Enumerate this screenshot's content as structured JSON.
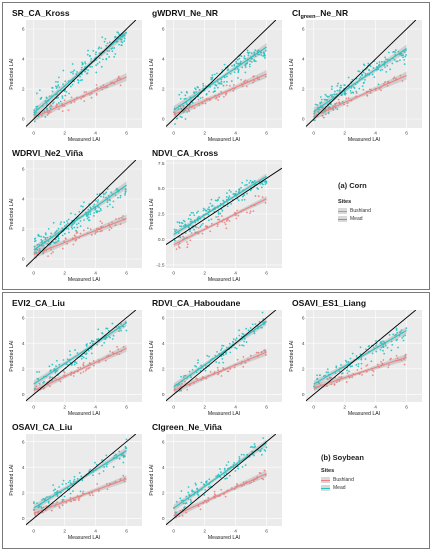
{
  "colors": {
    "bushland": "#f08080",
    "mead": "#20c4c4",
    "identity": "#000000",
    "plot_bg": "#ebebeb",
    "grid": "#ffffff"
  },
  "chart_data": [
    {
      "id": "SR_CA_Kross",
      "group": "corn",
      "title": "SR_CA_Kross",
      "title_sub": "",
      "title_tail": "",
      "type": "scatter",
      "xlabel": "Measured LAI",
      "ylabel": "Predicted LAI",
      "xlim": [
        -0.5,
        7
      ],
      "ylim": [
        -0.6,
        6.6
      ],
      "xticks": [
        0,
        2,
        4,
        6
      ],
      "yticks": [
        0,
        2,
        4,
        6
      ],
      "xtick_labels": [
        "0",
        "2",
        "4",
        "6"
      ],
      "ytick_labels": [
        "0",
        "2",
        "4",
        "6"
      ],
      "series": [
        {
          "name": "Bushland",
          "intercept": 0.1,
          "slope": 0.45,
          "xmin": 0,
          "xmax": 6,
          "noise": 0.35,
          "n": 60
        },
        {
          "name": "Mead",
          "intercept": 0.4,
          "slope": 0.9,
          "xmin": 0,
          "xmax": 6,
          "noise": 0.9,
          "n": 190,
          "cap": 5.8
        }
      ]
    },
    {
      "id": "gWDRVI_Ne_NR",
      "group": "corn",
      "title": "gWDRVI_Ne_NR",
      "title_sub": "",
      "title_tail": "",
      "type": "scatter",
      "xlabel": "Measured LAI",
      "ylabel": "Predicted LAI",
      "xlim": [
        -0.5,
        7
      ],
      "ylim": [
        -0.6,
        6.6
      ],
      "xticks": [
        0,
        2,
        4,
        6
      ],
      "yticks": [
        0,
        2,
        4,
        6
      ],
      "xtick_labels": [
        "0",
        "2",
        "4",
        "6"
      ],
      "ytick_labels": [
        "0",
        "2",
        "4",
        "6"
      ],
      "series": [
        {
          "name": "Bushland",
          "intercept": 0.3,
          "slope": 0.45,
          "xmin": 0,
          "xmax": 6,
          "noise": 0.35,
          "n": 60
        },
        {
          "name": "Mead",
          "intercept": 0.6,
          "slope": 0.7,
          "xmin": 0,
          "xmax": 6,
          "noise": 0.8,
          "n": 190,
          "cap": 4.6
        }
      ]
    },
    {
      "id": "CI_green_Ne_NR",
      "group": "corn",
      "title": "CI",
      "title_sub": "green",
      "title_tail": "_Ne_NR",
      "type": "scatter",
      "xlabel": "Measured LAI",
      "ylabel": "Predicted LAI",
      "xlim": [
        -0.5,
        7
      ],
      "ylim": [
        -0.6,
        6.6
      ],
      "xticks": [
        0,
        2,
        4,
        6
      ],
      "yticks": [
        0,
        2,
        4,
        6
      ],
      "xtick_labels": [
        "0",
        "2",
        "4",
        "6"
      ],
      "ytick_labels": [
        "0",
        "2",
        "4",
        "6"
      ],
      "series": [
        {
          "name": "Bushland",
          "intercept": 0.2,
          "slope": 0.45,
          "xmin": 0,
          "xmax": 6,
          "noise": 0.35,
          "n": 60
        },
        {
          "name": "Mead",
          "intercept": 0.5,
          "slope": 0.7,
          "xmin": 0,
          "xmax": 6,
          "noise": 0.8,
          "n": 190,
          "cap": 4.6
        }
      ]
    },
    {
      "id": "WDRVI_Ne2_Vina",
      "group": "corn",
      "title": "WDRVI_Ne2_Viña",
      "title_sub": "",
      "title_tail": "",
      "type": "scatter",
      "xlabel": "Measured LAI",
      "ylabel": "Predicted LAI",
      "xlim": [
        -0.5,
        7
      ],
      "ylim": [
        -0.6,
        6.6
      ],
      "xticks": [
        0,
        2,
        4,
        6
      ],
      "yticks": [
        0,
        2,
        4,
        6
      ],
      "xtick_labels": [
        "0",
        "2",
        "4",
        "6"
      ],
      "ytick_labels": [
        "0",
        "2",
        "4",
        "6"
      ],
      "series": [
        {
          "name": "Bushland",
          "intercept": 0.3,
          "slope": 0.4,
          "xmin": 0,
          "xmax": 6,
          "noise": 0.35,
          "n": 60
        },
        {
          "name": "Mead",
          "intercept": 0.6,
          "slope": 0.72,
          "xmin": 0,
          "xmax": 6,
          "noise": 0.8,
          "n": 190,
          "cap": 4.7
        }
      ]
    },
    {
      "id": "NDVI_CA_Kross",
      "group": "corn",
      "title": "NDVI_CA_Kross",
      "title_sub": "",
      "title_tail": "",
      "type": "scatter",
      "xlabel": "Measured LAI",
      "ylabel": "Predicted LAI",
      "xlim": [
        -0.5,
        7
      ],
      "ylim": [
        -2.8,
        7.8
      ],
      "xticks": [
        0,
        2,
        4,
        6
      ],
      "yticks": [
        -2.5,
        0,
        2.5,
        5,
        7.5
      ],
      "xtick_labels": [
        "0",
        "2",
        "4",
        "6"
      ],
      "ytick_labels": [
        "-2.5",
        "0.0",
        "2.5",
        "5.0",
        "7.5"
      ],
      "series": [
        {
          "name": "Bushland",
          "intercept": -0.5,
          "slope": 0.75,
          "xmin": 0,
          "xmax": 6,
          "noise": 0.7,
          "n": 60
        },
        {
          "name": "Mead",
          "intercept": 0.5,
          "slope": 0.95,
          "xmin": 0,
          "xmax": 6,
          "noise": 1.1,
          "n": 190,
          "cap": 5.8
        }
      ]
    },
    {
      "id": "EVI2_CA_Liu",
      "group": "soybean",
      "title": "EVI2_CA_Liu",
      "title_sub": "",
      "title_tail": "",
      "type": "scatter",
      "xlabel": "Measured LAI",
      "ylabel": "Predicted LAI",
      "xlim": [
        -0.5,
        7
      ],
      "ylim": [
        -0.6,
        6.6
      ],
      "xticks": [
        0,
        2,
        4,
        6
      ],
      "yticks": [
        0,
        2,
        4,
        6
      ],
      "xtick_labels": [
        "0",
        "2",
        "4",
        "6"
      ],
      "ytick_labels": [
        "0",
        "2",
        "4",
        "6"
      ],
      "series": [
        {
          "name": "Bushland",
          "intercept": 0.3,
          "slope": 0.55,
          "xmin": 0,
          "xmax": 6,
          "noise": 0.4,
          "n": 60
        },
        {
          "name": "Mead",
          "intercept": 0.8,
          "slope": 0.8,
          "xmin": 0,
          "xmax": 6,
          "noise": 0.7,
          "n": 110
        }
      ]
    },
    {
      "id": "RDVI_CA_Haboudane",
      "group": "soybean",
      "title": "RDVI_CA_Haboudane",
      "title_sub": "",
      "title_tail": "",
      "type": "scatter",
      "xlabel": "Measured LAI",
      "ylabel": "Predicted LAI",
      "xlim": [
        -0.5,
        7
      ],
      "ylim": [
        -0.6,
        6.6
      ],
      "xticks": [
        0,
        2,
        4,
        6
      ],
      "yticks": [
        0,
        2,
        4,
        6
      ],
      "xtick_labels": [
        "0",
        "2",
        "4",
        "6"
      ],
      "ytick_labels": [
        "0",
        "2",
        "4",
        "6"
      ],
      "series": [
        {
          "name": "Bushland",
          "intercept": 0.3,
          "slope": 0.5,
          "xmin": 0,
          "xmax": 6,
          "noise": 0.4,
          "n": 60
        },
        {
          "name": "Mead",
          "intercept": 0.6,
          "slope": 0.85,
          "xmin": 0,
          "xmax": 6,
          "noise": 0.7,
          "n": 110
        }
      ]
    },
    {
      "id": "OSAVI_ES1_Liang",
      "group": "soybean",
      "title": "OSAVI_ES1_Liang",
      "title_sub": "",
      "title_tail": "",
      "type": "scatter",
      "xlabel": "Measured LAI",
      "ylabel": "Predicted LAI",
      "xlim": [
        -0.5,
        7
      ],
      "ylim": [
        -0.6,
        6.6
      ],
      "xticks": [
        0,
        2,
        4,
        6
      ],
      "yticks": [
        0,
        2,
        4,
        6
      ],
      "xtick_labels": [
        "0",
        "2",
        "4",
        "6"
      ],
      "ytick_labels": [
        "0",
        "2",
        "4",
        "6"
      ],
      "series": [
        {
          "name": "Bushland",
          "intercept": 0.5,
          "slope": 0.4,
          "xmin": 0,
          "xmax": 6,
          "noise": 0.4,
          "n": 60
        },
        {
          "name": "Mead",
          "intercept": 0.8,
          "slope": 0.7,
          "xmin": 0,
          "xmax": 6,
          "noise": 0.7,
          "n": 110
        }
      ]
    },
    {
      "id": "OSAVI_CA_Liu",
      "group": "soybean",
      "title": "OSAVI_CA_Liu",
      "title_sub": "",
      "title_tail": "",
      "type": "scatter",
      "xlabel": "Measured LAI",
      "ylabel": "Predicted LAI",
      "xlim": [
        -0.5,
        7
      ],
      "ylim": [
        -0.6,
        6.6
      ],
      "xticks": [
        0,
        2,
        4,
        6
      ],
      "yticks": [
        0,
        2,
        4,
        6
      ],
      "xtick_labels": [
        "0",
        "2",
        "4",
        "6"
      ],
      "ytick_labels": [
        "0",
        "2",
        "4",
        "6"
      ],
      "series": [
        {
          "name": "Bushland",
          "intercept": 0.4,
          "slope": 0.45,
          "xmin": 0,
          "xmax": 6,
          "noise": 0.4,
          "n": 60
        },
        {
          "name": "Mead",
          "intercept": 0.8,
          "slope": 0.75,
          "xmin": 0,
          "xmax": 6,
          "noise": 0.7,
          "n": 110
        }
      ]
    },
    {
      "id": "CIgreen_Ne_Vina",
      "group": "soybean",
      "title": "CIgreen_Ne_Viña",
      "title_sub": "",
      "title_tail": "",
      "type": "scatter",
      "xlabel": "Measured LAI",
      "ylabel": "Predicted LAI",
      "xlim": [
        -0.5,
        7
      ],
      "ylim": [
        -0.6,
        6.6
      ],
      "xticks": [
        0,
        2,
        4,
        6
      ],
      "yticks": [
        0,
        2,
        4,
        6
      ],
      "xtick_labels": [
        "0",
        "2",
        "4",
        "6"
      ],
      "ytick_labels": [
        "0",
        "2",
        "4",
        "6"
      ],
      "series": [
        {
          "name": "Bushland",
          "intercept": 0.2,
          "slope": 0.55,
          "xmin": 0,
          "xmax": 6,
          "noise": 0.4,
          "n": 60
        },
        {
          "name": "Mead",
          "intercept": 0.8,
          "slope": 0.85,
          "xmin": 0,
          "xmax": 6,
          "noise": 0.7,
          "n": 110
        }
      ]
    }
  ],
  "legends": {
    "corn": {
      "caption": "(a) Corn",
      "title": "Sites",
      "items": [
        "Bushland",
        "Mead"
      ]
    },
    "soybean": {
      "caption": "(b) Soybean",
      "title": "Sites",
      "items": [
        "Bushland",
        "Mead"
      ]
    }
  }
}
